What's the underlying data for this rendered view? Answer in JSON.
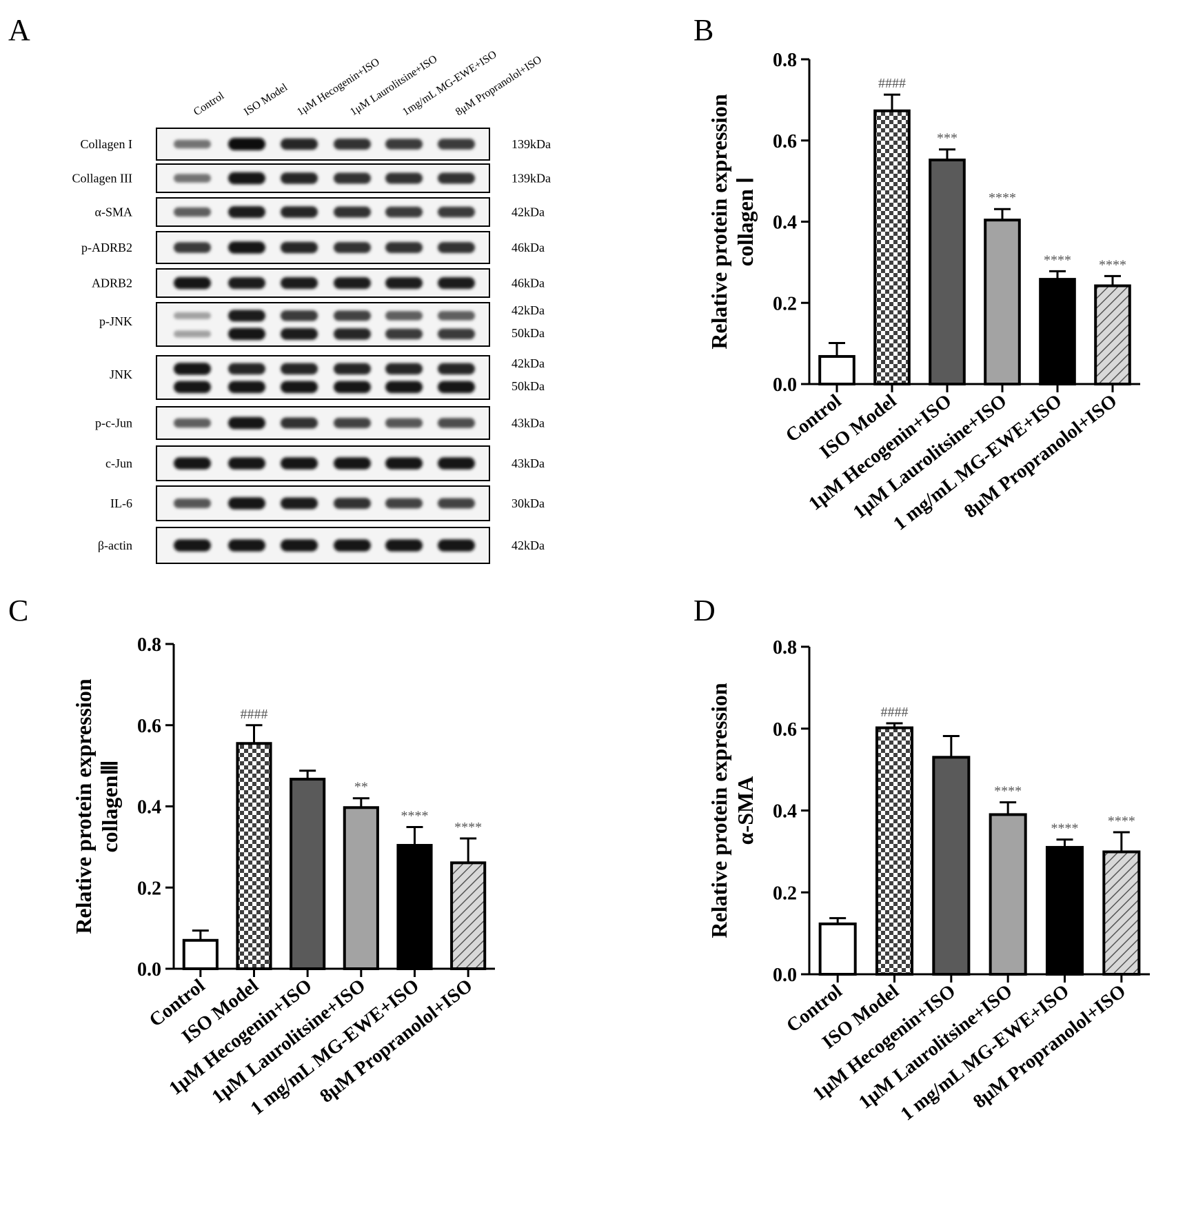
{
  "panels": {
    "a": "A",
    "b": "B",
    "c": "C",
    "d": "D"
  },
  "blot": {
    "lanes": [
      "Control",
      "ISO Model",
      "1μM Hecogenin+ISO",
      "1μM Laurolitsine+ISO",
      "1mg/mL MG-EWE+ISO",
      "8μM Propranolol+ISO"
    ],
    "rows": [
      {
        "label": "Collagen I",
        "kda": [
          "139kDa"
        ]
      },
      {
        "label": "Collagen III",
        "kda": [
          "139kDa"
        ]
      },
      {
        "label": "α-SMA",
        "kda": [
          "42kDa"
        ]
      },
      {
        "label": "p-ADRB2",
        "kda": [
          "46kDa"
        ]
      },
      {
        "label": "ADRB2",
        "kda": [
          "46kDa"
        ]
      },
      {
        "label": "p-JNK",
        "kda": [
          "42kDa",
          "50kDa"
        ]
      },
      {
        "label": "JNK",
        "kda": [
          "42kDa",
          "50kDa"
        ]
      },
      {
        "label": "p-c-Jun",
        "kda": [
          "43kDa"
        ]
      },
      {
        "label": "c-Jun",
        "kda": [
          "43kDa"
        ]
      },
      {
        "label": "IL-6",
        "kda": [
          "30kDa"
        ]
      },
      {
        "label": "β-actin",
        "kda": [
          "42kDa"
        ]
      }
    ]
  },
  "chart_data": [
    {
      "panel": "B",
      "type": "bar",
      "categories": [
        "Control",
        "ISO Model",
        "1μM Hecogenin+ISO",
        "1μM Laurolitsine+ISO",
        "1 mg/mL MG-EWE+ISO",
        "8μM Propranolol+ISO"
      ],
      "values": [
        0.068,
        0.673,
        0.552,
        0.404,
        0.258,
        0.242
      ],
      "errors": [
        0.033,
        0.04,
        0.026,
        0.027,
        0.02,
        0.024
      ],
      "significance": [
        "",
        "####",
        "***",
        "****",
        "****",
        "****"
      ],
      "ylabel_line1": "Relative protein expression",
      "ylabel_line2": "collagen Ⅰ",
      "ylim": [
        0,
        0.8
      ],
      "yticks": [
        "0.0",
        "0.2",
        "0.4",
        "0.6",
        "0.8"
      ]
    },
    {
      "panel": "C",
      "type": "bar",
      "categories": [
        "Control",
        "ISO Model",
        "1μM Hecogenin+ISO",
        "1μM Laurolitsine+ISO",
        "1 mg/mL MG-EWE+ISO",
        "8μM Propranolol+ISO"
      ],
      "values": [
        0.07,
        0.555,
        0.467,
        0.397,
        0.304,
        0.261
      ],
      "errors": [
        0.024,
        0.045,
        0.021,
        0.023,
        0.045,
        0.06
      ],
      "significance": [
        "",
        "####",
        "",
        "**",
        "****",
        "****"
      ],
      "ylabel_line1": "Relative protein expression",
      "ylabel_line2": "collagenⅢ",
      "ylim": [
        0,
        0.8
      ],
      "yticks": [
        "0.0",
        "0.2",
        "0.4",
        "0.6",
        "0.8"
      ]
    },
    {
      "panel": "D",
      "type": "bar",
      "categories": [
        "Control",
        "ISO Model",
        "1μM Hecogenin+ISO",
        "1μM Laurolitsine+ISO",
        "1 mg/mL MG-EWE+ISO",
        "8μM Propranolol+ISO"
      ],
      "values": [
        0.123,
        0.602,
        0.53,
        0.39,
        0.31,
        0.299
      ],
      "errors": [
        0.014,
        0.011,
        0.052,
        0.03,
        0.019,
        0.048
      ],
      "significance": [
        "",
        "####",
        "",
        "****",
        "****",
        "****"
      ],
      "ylabel_line1": "Relative protein expression",
      "ylabel_line2": "α-SMA",
      "ylim": [
        0,
        0.8
      ],
      "yticks": [
        "0.0",
        "0.2",
        "0.4",
        "0.6",
        "0.8"
      ]
    }
  ],
  "fills": [
    "white",
    "checker",
    "#5a5a5a",
    "#a3a3a3",
    "#000000",
    "hatch"
  ]
}
